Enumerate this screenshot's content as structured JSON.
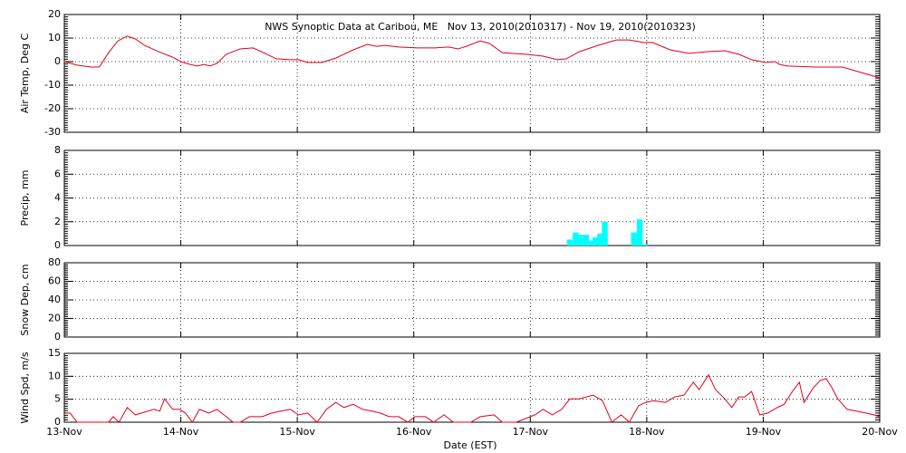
{
  "chart_data": [
    {
      "type": "line",
      "title": "NWS Synoptic Data at Caribou, ME   Nov 13, 2010(2010317) - Nov 19, 2010(2010323)",
      "y_label": "Air Temp, Deg C",
      "ylim": [
        -30,
        20
      ],
      "yticks": [
        -30,
        -20,
        -10,
        0,
        10,
        20
      ],
      "xlim": [
        0,
        7
      ],
      "grid": true,
      "series": [
        {
          "color": "#e0001a",
          "x": [
            0,
            0.11,
            0.23,
            0.3,
            0.38,
            0.46,
            0.54,
            0.61,
            0.69,
            0.81,
            0.93,
            1.0,
            1.08,
            1.14,
            1.2,
            1.25,
            1.31,
            1.39,
            1.51,
            1.62,
            1.74,
            1.82,
            1.94,
            2.01,
            2.09,
            2.21,
            2.33,
            2.48,
            2.6,
            2.68,
            2.75,
            2.87,
            3.03,
            3.18,
            3.3,
            3.38,
            3.45,
            3.57,
            3.65,
            3.76,
            3.96,
            4.11,
            4.23,
            4.31,
            4.42,
            4.58,
            4.74,
            4.85,
            4.97,
            5.05,
            5.2,
            5.36,
            5.51,
            5.67,
            5.79,
            5.9,
            6.02,
            6.1,
            6.14,
            6.21,
            6.45,
            6.68,
            6.84,
            6.95,
            7.0
          ],
          "values": [
            0,
            -1.5,
            -2.3,
            -2.3,
            3.8,
            8.8,
            10.8,
            9.6,
            6.9,
            4.2,
            1.9,
            0,
            -1.2,
            -1.9,
            -1.2,
            -1.9,
            -0.8,
            3.1,
            5.4,
            5.8,
            3.1,
            1.2,
            0.8,
            0.8,
            -0.4,
            -0.4,
            1.5,
            5,
            7.3,
            6.5,
            6.9,
            6.2,
            5.8,
            5.8,
            6.2,
            5.4,
            6.5,
            8.8,
            7.7,
            3.8,
            3.1,
            2.3,
            0.8,
            1.2,
            4.2,
            6.9,
            9.2,
            9.2,
            8.1,
            8.1,
            5,
            3.5,
            4.2,
            4.6,
            3.1,
            0.8,
            -0.4,
            0,
            -1.2,
            -1.9,
            -2.3,
            -2.3,
            -4.6,
            -6.2,
            -6.9
          ]
        }
      ]
    },
    {
      "type": "bar",
      "y_label": "Precip, mm",
      "ylim": [
        0,
        8
      ],
      "yticks": [
        0,
        2,
        4,
        6,
        8
      ],
      "xlim": [
        0,
        7
      ],
      "grid": true,
      "series": [
        {
          "color": "#00ffff",
          "x": [
            4.34,
            4.39,
            4.43,
            4.48,
            4.52,
            4.56,
            4.6,
            4.64,
            4.89,
            4.94,
            4.99
          ],
          "values": [
            0.5,
            1.1,
            0.9,
            0.9,
            0.4,
            0.7,
            1.0,
            2.0,
            1.1,
            2.2,
            0.1
          ]
        }
      ]
    },
    {
      "type": "line",
      "y_label": "Snow Dep, cm",
      "ylim": [
        0,
        80
      ],
      "yticks": [
        0,
        20,
        40,
        60,
        80
      ],
      "xlim": [
        0,
        7
      ],
      "grid": true
    },
    {
      "type": "line",
      "y_label": "Wind Spd, m/s",
      "x_label": "Date (EST)",
      "ylim": [
        0,
        15
      ],
      "yticks": [
        0,
        5,
        10,
        15
      ],
      "xlim": [
        0,
        7
      ],
      "grid": true,
      "xticks": [
        {
          "value": 0,
          "label": "13-Nov"
        },
        {
          "value": 1,
          "label": "14-Nov"
        },
        {
          "value": 2,
          "label": "15-Nov"
        },
        {
          "value": 3,
          "label": "16-Nov"
        },
        {
          "value": 4,
          "label": "17-Nov"
        },
        {
          "value": 5,
          "label": "18-Nov"
        },
        {
          "value": 6,
          "label": "19-Nov"
        },
        {
          "value": 7,
          "label": "20-Nov"
        }
      ],
      "series": [
        {
          "color": "#e0001a",
          "x": [
            0,
            0.05,
            0.11,
            0.38,
            0.42,
            0.47,
            0.54,
            0.61,
            0.69,
            0.77,
            0.82,
            0.86,
            0.93,
            0.99,
            1.04,
            1.1,
            1.16,
            1.24,
            1.31,
            1.39,
            1.45,
            1.51,
            1.59,
            1.7,
            1.78,
            1.86,
            1.94,
            2.01,
            2.09,
            2.17,
            2.25,
            2.33,
            2.4,
            2.48,
            2.56,
            2.64,
            2.71,
            2.79,
            2.87,
            2.95,
            3.01,
            3.1,
            3.17,
            3.26,
            3.34,
            3.49,
            3.57,
            3.69,
            3.76,
            3.88,
            4.04,
            4.11,
            4.19,
            4.27,
            4.34,
            4.42,
            4.54,
            4.62,
            4.7,
            4.78,
            4.85,
            4.93,
            4.99,
            5.06,
            5.16,
            5.24,
            5.32,
            5.4,
            5.45,
            5.53,
            5.59,
            5.67,
            5.73,
            5.79,
            5.84,
            5.9,
            5.97,
            6.04,
            6.12,
            6.18,
            6.25,
            6.31,
            6.35,
            6.43,
            6.49,
            6.54,
            6.59,
            6.64,
            6.72,
            6.8,
            6.88,
            6.95,
            7.0
          ],
          "values": [
            2,
            2,
            0,
            0,
            1.2,
            0,
            3.2,
            1.6,
            2.2,
            2.8,
            2.4,
            5.1,
            2.8,
            2.8,
            2,
            0,
            2.8,
            2,
            2.8,
            1.2,
            0,
            0,
            1.2,
            1.2,
            2,
            2.4,
            2.8,
            1.6,
            2,
            0,
            2.8,
            4.3,
            3.2,
            3.9,
            2.8,
            2.4,
            2,
            1.2,
            1.2,
            0,
            1.2,
            1.2,
            0,
            1.6,
            0,
            0,
            1.2,
            1.6,
            0,
            0,
            1.6,
            2.8,
            1.6,
            2.8,
            5.1,
            5.1,
            5.9,
            4.7,
            0,
            1.6,
            0,
            3.6,
            4.3,
            4.7,
            4.3,
            5.5,
            5.9,
            8.7,
            7.1,
            10.3,
            7.1,
            5.1,
            3.2,
            5.5,
            5.5,
            6.7,
            1.6,
            2,
            3.2,
            3.9,
            6.7,
            8.7,
            4.3,
            7.5,
            9.1,
            9.5,
            7.5,
            5.1,
            2.8,
            2.4,
            2,
            1.6,
            1.2
          ]
        }
      ]
    }
  ]
}
